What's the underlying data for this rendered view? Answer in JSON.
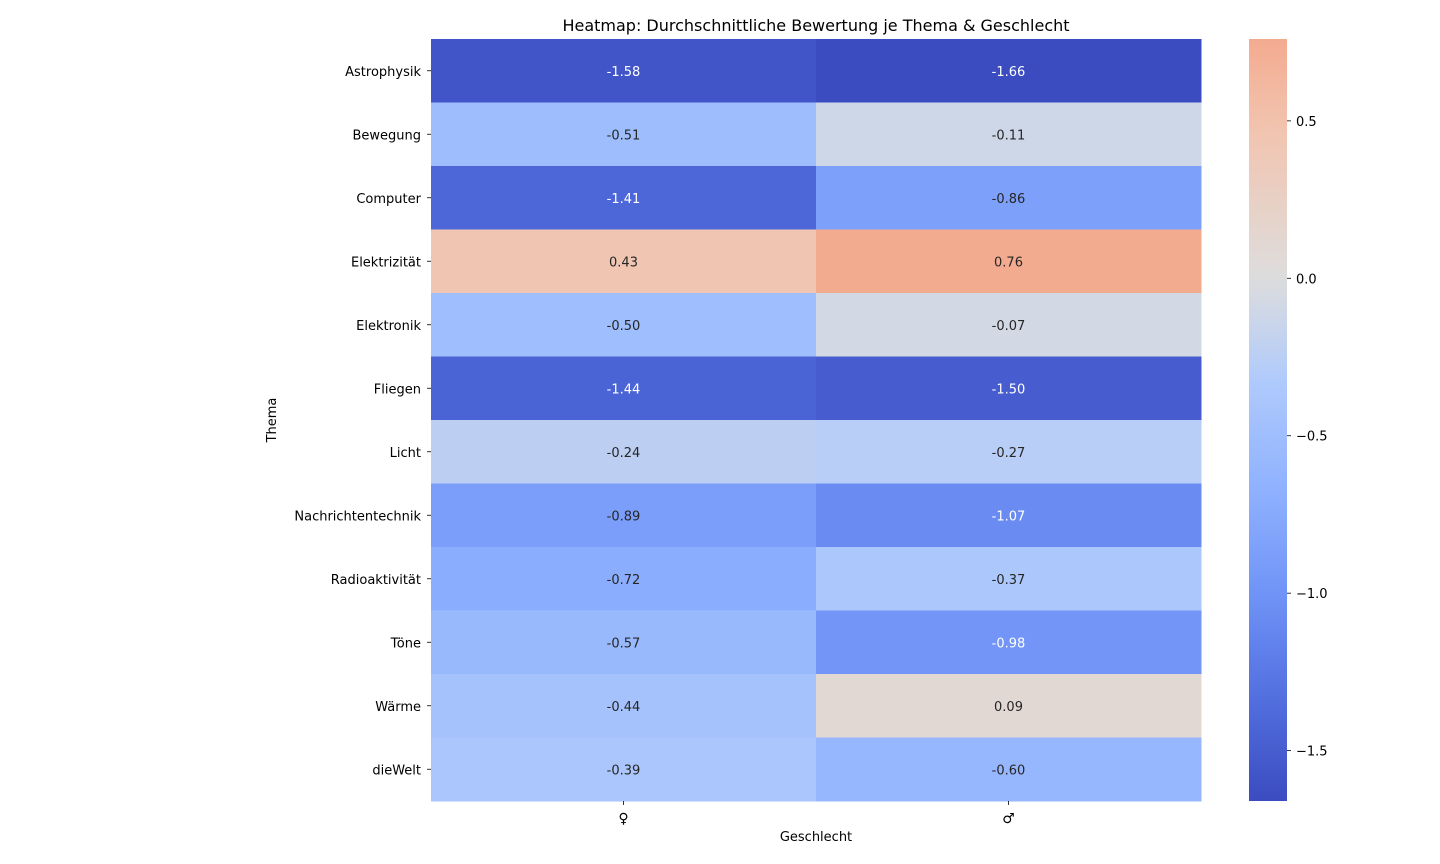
{
  "chart_data": {
    "type": "heatmap",
    "title": "Heatmap: Durchschnittliche Bewertung je Thema & Geschlecht",
    "xlabel": "Geschlecht",
    "ylabel": "Thema",
    "x_categories": [
      "♀",
      "♂"
    ],
    "y_categories": [
      "Astrophysik",
      "Bewegung",
      "Computer",
      "Elektrizität",
      "Elektronik",
      "Fliegen",
      "Licht",
      "Nachrichtentechnik",
      "Radioaktivität",
      "Töne",
      "Wärme",
      "dieWelt"
    ],
    "values": [
      [
        -1.58,
        -1.66
      ],
      [
        -0.51,
        -0.11
      ],
      [
        -1.41,
        -0.86
      ],
      [
        0.43,
        0.76
      ],
      [
        -0.5,
        -0.07
      ],
      [
        -1.44,
        -1.5
      ],
      [
        -0.24,
        -0.27
      ],
      [
        -0.89,
        -1.07
      ],
      [
        -0.72,
        -0.37
      ],
      [
        -0.57,
        -0.98
      ],
      [
        -0.44,
        0.09
      ],
      [
        -0.39,
        -0.6
      ]
    ],
    "value_labels": [
      [
        "-1.58",
        "-1.66"
      ],
      [
        "-0.51",
        "-0.11"
      ],
      [
        "-1.41",
        "-0.86"
      ],
      [
        "0.43",
        "0.76"
      ],
      [
        "-0.50",
        "-0.07"
      ],
      [
        "-1.44",
        "-1.50"
      ],
      [
        "-0.24",
        "-0.27"
      ],
      [
        "-0.89",
        "-1.07"
      ],
      [
        "-0.72",
        "-0.37"
      ],
      [
        "-0.57",
        "-0.98"
      ],
      [
        "-0.44",
        "0.09"
      ],
      [
        "-0.39",
        "-0.60"
      ]
    ],
    "colormap": "coolwarm",
    "color_range": [
      -1.66,
      0.76
    ],
    "colorbar_ticks": [
      0.5,
      0.0,
      -0.5,
      -1.0,
      -1.5
    ],
    "colorbar_tick_labels": [
      "0.5",
      "0.0",
      "−0.5",
      "−1.0",
      "−1.5"
    ],
    "colorbar_position": "right"
  }
}
